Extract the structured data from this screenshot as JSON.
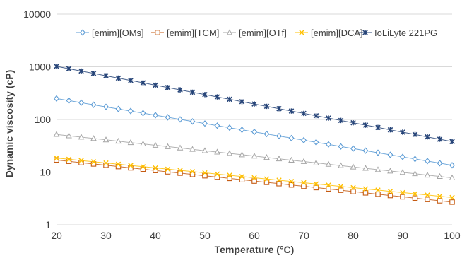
{
  "chart_data": {
    "type": "line",
    "title": "",
    "xlabel": "Temperature (°C)",
    "ylabel": "Dynamic viscosity (cP)",
    "yscale": "log",
    "xlim": [
      20,
      100
    ],
    "ylim": [
      1,
      10000
    ],
    "x_ticks": [
      "20",
      "30",
      "40",
      "50",
      "60",
      "70",
      "80",
      "90",
      "100"
    ],
    "y_ticks": [
      "1",
      "10",
      "100",
      "1000",
      "10000"
    ],
    "grid": "horizontal",
    "legend_position": "top",
    "x": [
      20,
      22.5,
      25,
      27.5,
      30,
      32.5,
      35,
      37.5,
      40,
      42.5,
      45,
      47.5,
      50,
      52.5,
      55,
      57.5,
      60,
      62.5,
      65,
      67.5,
      70,
      72.5,
      75,
      77.5,
      80,
      82.5,
      85,
      87.5,
      90,
      92.5,
      95,
      97.5,
      100
    ],
    "series": [
      {
        "name": "[emim][OMs]",
        "color": "#5b9bd5",
        "marker": "diamond",
        "y_start": 250,
        "y_end": 13.5
      },
      {
        "name": "[emim][TCM]",
        "color": "#c55a11",
        "marker": "square",
        "y_start": 17,
        "y_end": 2.7
      },
      {
        "name": "[emim][OTf]",
        "color": "#a5a5a5",
        "marker": "triangle",
        "y_start": 52,
        "y_end": 7.8
      },
      {
        "name": "[emim][DCA]",
        "color": "#ffc000",
        "marker": "x",
        "y_start": 18.5,
        "y_end": 3.3
      },
      {
        "name": "IoLiLyte 221PG",
        "color": "#264478",
        "marker": "star",
        "y_start": 1020,
        "y_end": 38
      }
    ]
  }
}
